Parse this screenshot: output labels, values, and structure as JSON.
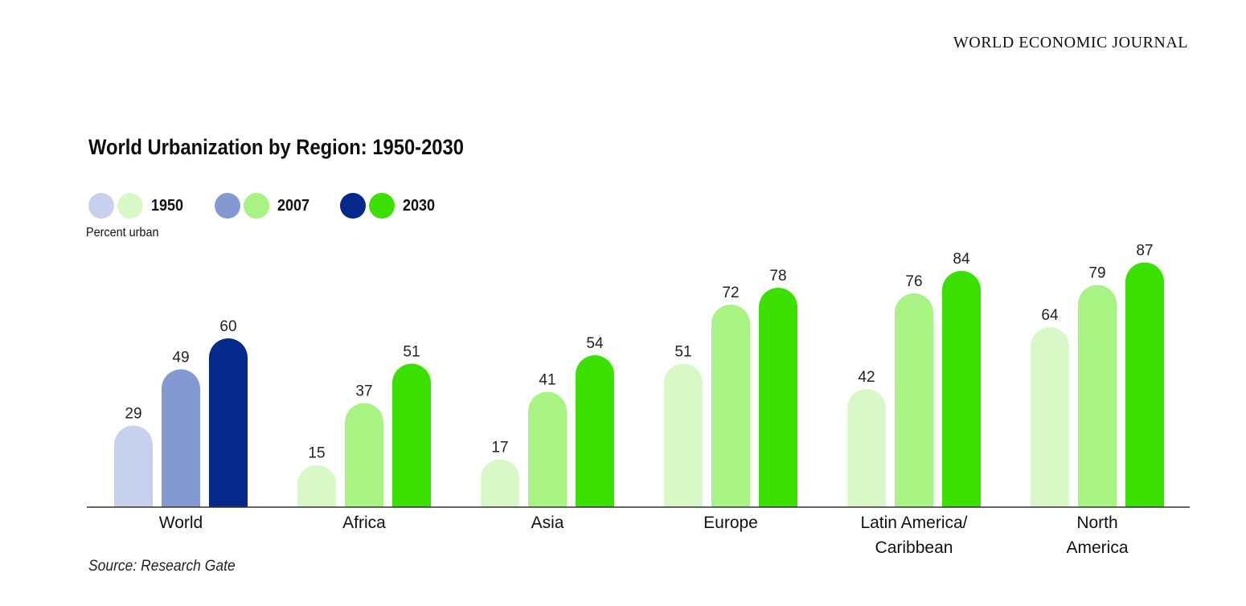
{
  "masthead": "WORLD ECONOMIC JOURNAL",
  "source": "Source: Research Gate",
  "chart_data": {
    "type": "bar",
    "title": "World Urbanization by Region: 1950-2030",
    "ylabel": "Percent urban",
    "xlabel": "",
    "ylim": [
      0,
      100
    ],
    "grid": false,
    "legend_position": "top-left",
    "categories": [
      "World",
      "Africa",
      "Asia",
      "Europe",
      "Latin America/\nCaribbean",
      "North\nAmerica"
    ],
    "series": [
      {
        "name": "1950",
        "values": [
          29,
          15,
          17,
          51,
          42,
          64
        ]
      },
      {
        "name": "2007",
        "values": [
          49,
          37,
          41,
          72,
          76,
          79
        ]
      },
      {
        "name": "2030",
        "values": [
          60,
          51,
          54,
          78,
          84,
          87
        ]
      }
    ],
    "colors": {
      "world": [
        "#c7d1ee",
        "#8499d2",
        "#04298a"
      ],
      "regions": [
        "#d9f8c8",
        "#a8f384",
        "#3ce000"
      ]
    }
  }
}
